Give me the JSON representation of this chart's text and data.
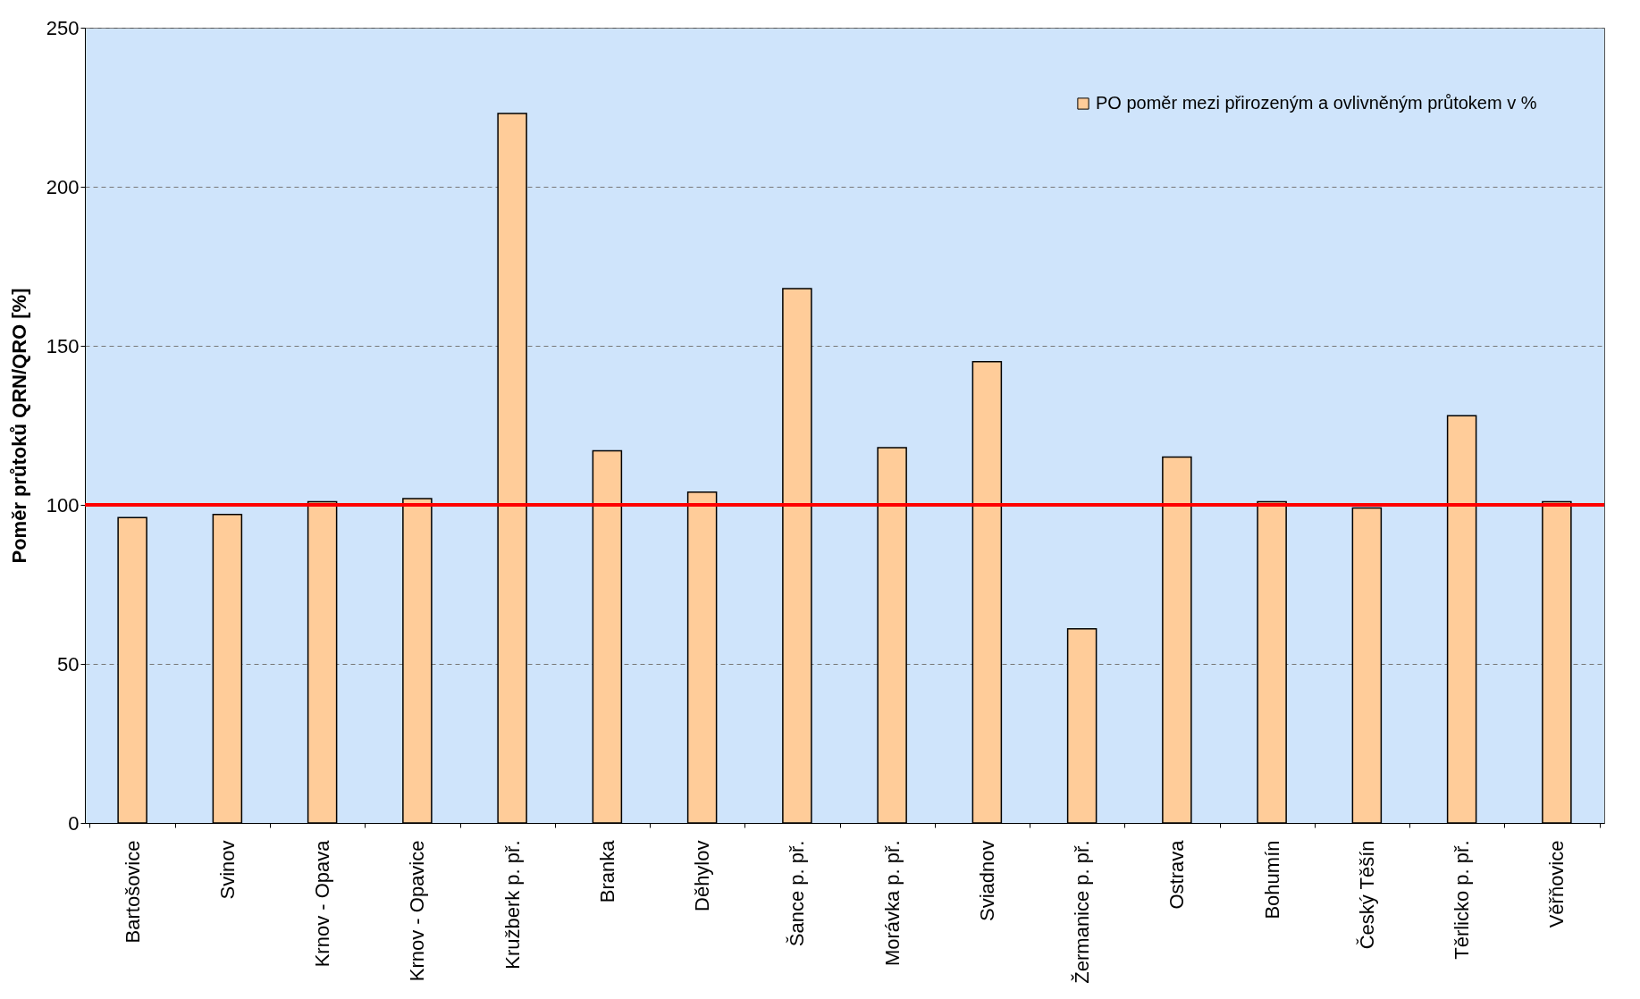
{
  "chart_data": {
    "type": "bar",
    "ylabel": "Poměr průtoků QRN/QRO [%]",
    "categories": [
      "Bartošovice",
      "Svinov",
      "Krnov - Opava",
      "Krnov - Opavice",
      "Kružberk p. př.",
      "Branka",
      "Děhylov",
      "Šance p. př.",
      "Morávka p. př.",
      "Sviadnov",
      "Žermanice p. př.",
      "Ostrava",
      "Bohumín",
      "Český Těšín",
      "Těrlicko p. př.",
      "Věřňovice"
    ],
    "series": [
      {
        "name": "PO poměr mezi přirozeným a ovlivněným průtokem v %",
        "color": "#ffcc99",
        "values": [
          96,
          97,
          101,
          102,
          223,
          117,
          104,
          168,
          118,
          145,
          61,
          115,
          101,
          99,
          128,
          101
        ]
      }
    ],
    "ylim": [
      0,
      250
    ],
    "yticks": [
      0,
      50,
      100,
      150,
      200,
      250
    ],
    "grid": "y",
    "legend": "top right",
    "ref_lines": [
      {
        "axis": "y",
        "value": 100,
        "color": "#ff0000"
      }
    ]
  }
}
